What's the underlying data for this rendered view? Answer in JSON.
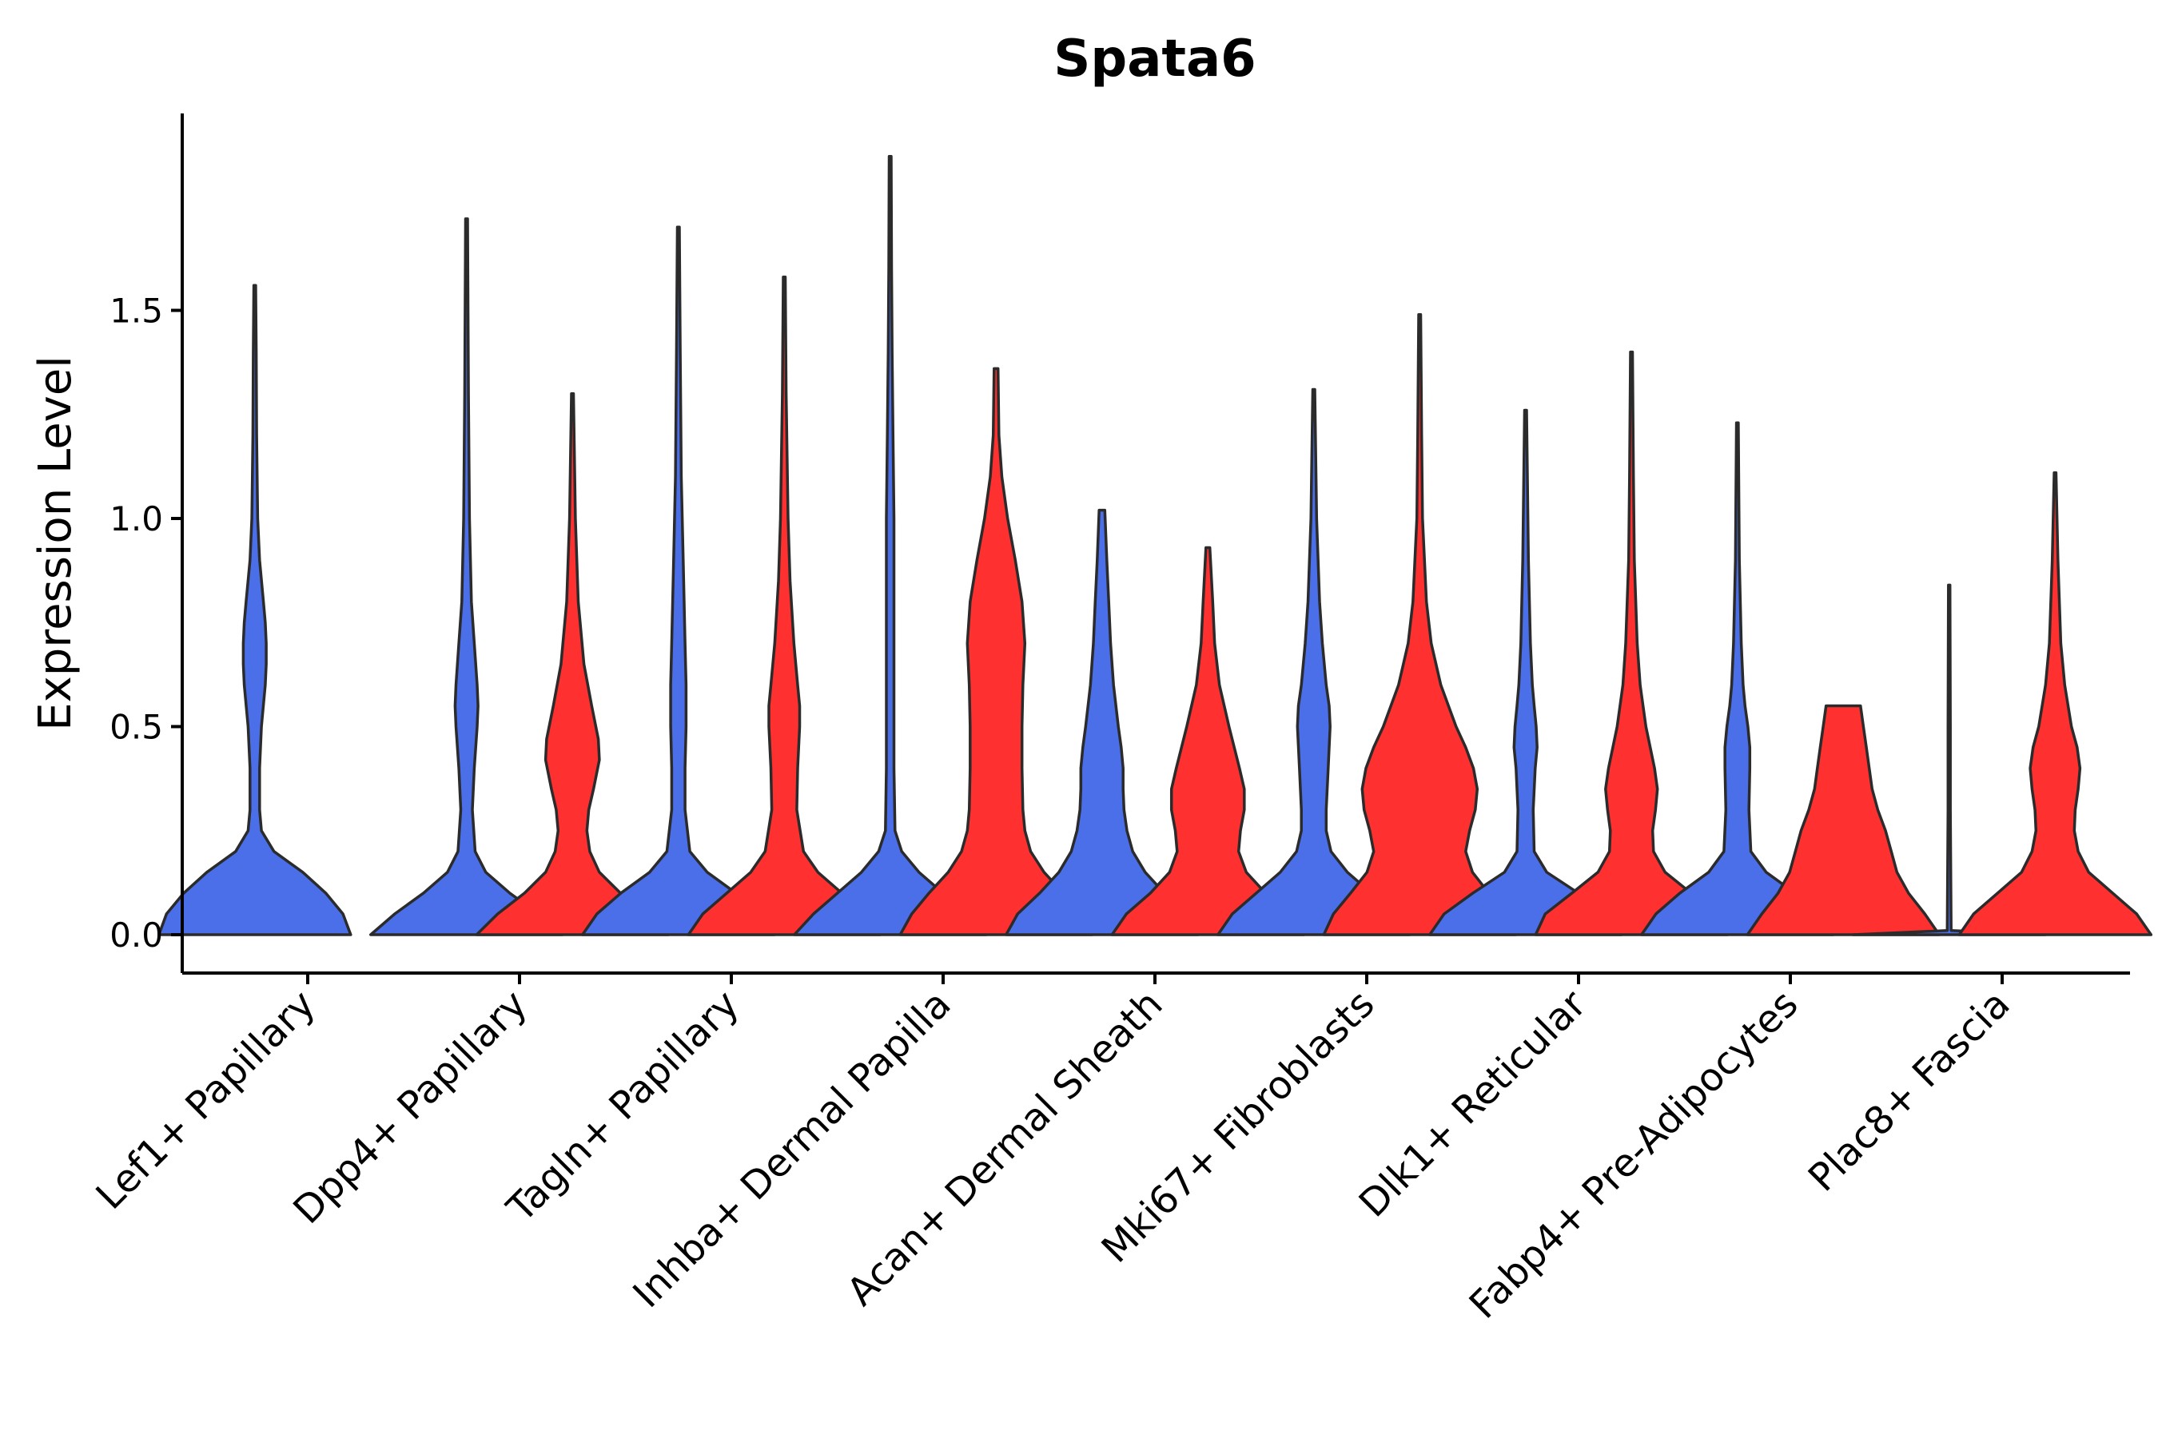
{
  "chart_data": {
    "type": "violin",
    "title": "Spata6",
    "xlabel": "",
    "ylabel": "Expression Level",
    "ylim": [
      -0.1,
      1.97
    ],
    "yticks": [
      0.0,
      0.5,
      1.0,
      1.5
    ],
    "ytick_labels": [
      "0.0",
      "0.5",
      "1.0",
      "1.5"
    ],
    "colors": {
      "blue": "#4A6FE8",
      "red": "#FF3030"
    },
    "categories": [
      "Lef1+ Papillary",
      "Dpp4+ Papillary",
      "Tagln+ Papillary",
      "Inhba+ Dermal Papilla",
      "Acan+ Dermal Sheath",
      "Mki67+ Fibroblasts",
      "Dlk1+ Reticular",
      "Fabp4+ Pre-Adipocytes",
      "Plac8+ Fascia"
    ],
    "violins": [
      {
        "category": "Lef1+ Papillary",
        "group": "blue",
        "max": 1.56,
        "profile": [
          [
            0,
            1.0
          ],
          [
            0.05,
            0.92
          ],
          [
            0.1,
            0.74
          ],
          [
            0.15,
            0.5
          ],
          [
            0.2,
            0.2
          ],
          [
            0.25,
            0.07
          ],
          [
            0.3,
            0.05
          ],
          [
            0.4,
            0.05
          ],
          [
            0.5,
            0.07
          ],
          [
            0.6,
            0.11
          ],
          [
            0.65,
            0.12
          ],
          [
            0.7,
            0.12
          ],
          [
            0.75,
            0.11
          ],
          [
            0.8,
            0.09
          ],
          [
            0.9,
            0.05
          ],
          [
            1.0,
            0.03
          ],
          [
            1.2,
            0.02
          ],
          [
            1.4,
            0.015
          ],
          [
            1.56,
            0.01
          ]
        ]
      },
      {
        "category": "Dpp4+ Papillary",
        "group": "blue",
        "max": 1.72,
        "profile": [
          [
            0,
            1.0
          ],
          [
            0.05,
            0.75
          ],
          [
            0.1,
            0.45
          ],
          [
            0.15,
            0.2
          ],
          [
            0.2,
            0.09
          ],
          [
            0.3,
            0.06
          ],
          [
            0.4,
            0.08
          ],
          [
            0.5,
            0.11
          ],
          [
            0.55,
            0.12
          ],
          [
            0.6,
            0.11
          ],
          [
            0.7,
            0.08
          ],
          [
            0.8,
            0.05
          ],
          [
            1.0,
            0.03
          ],
          [
            1.3,
            0.02
          ],
          [
            1.72,
            0.01
          ]
        ]
      },
      {
        "category": "Dpp4+ Papillary",
        "group": "red",
        "max": 1.3,
        "profile": [
          [
            0,
            1.0
          ],
          [
            0.05,
            0.78
          ],
          [
            0.1,
            0.5
          ],
          [
            0.15,
            0.28
          ],
          [
            0.2,
            0.18
          ],
          [
            0.25,
            0.15
          ],
          [
            0.3,
            0.17
          ],
          [
            0.35,
            0.22
          ],
          [
            0.42,
            0.28
          ],
          [
            0.47,
            0.27
          ],
          [
            0.55,
            0.2
          ],
          [
            0.65,
            0.12
          ],
          [
            0.8,
            0.06
          ],
          [
            1.0,
            0.03
          ],
          [
            1.3,
            0.01
          ]
        ]
      },
      {
        "category": "Tagln+ Papillary",
        "group": "blue",
        "max": 1.7,
        "profile": [
          [
            0,
            1.0
          ],
          [
            0.05,
            0.85
          ],
          [
            0.1,
            0.6
          ],
          [
            0.15,
            0.3
          ],
          [
            0.2,
            0.12
          ],
          [
            0.3,
            0.07
          ],
          [
            0.4,
            0.07
          ],
          [
            0.5,
            0.08
          ],
          [
            0.6,
            0.08
          ],
          [
            0.7,
            0.07
          ],
          [
            0.9,
            0.05
          ],
          [
            1.1,
            0.03
          ],
          [
            1.4,
            0.02
          ],
          [
            1.7,
            0.01
          ]
        ]
      },
      {
        "category": "Tagln+ Papillary",
        "group": "red",
        "max": 1.58,
        "profile": [
          [
            0,
            1.0
          ],
          [
            0.05,
            0.85
          ],
          [
            0.1,
            0.6
          ],
          [
            0.15,
            0.35
          ],
          [
            0.2,
            0.2
          ],
          [
            0.3,
            0.13
          ],
          [
            0.4,
            0.14
          ],
          [
            0.5,
            0.16
          ],
          [
            0.55,
            0.16
          ],
          [
            0.6,
            0.14
          ],
          [
            0.7,
            0.1
          ],
          [
            0.85,
            0.06
          ],
          [
            1.0,
            0.04
          ],
          [
            1.3,
            0.02
          ],
          [
            1.58,
            0.01
          ]
        ]
      },
      {
        "category": "Inhba+ Dermal Papilla",
        "group": "blue",
        "max": 1.87,
        "profile": [
          [
            0,
            1.0
          ],
          [
            0.05,
            0.8
          ],
          [
            0.1,
            0.55
          ],
          [
            0.15,
            0.3
          ],
          [
            0.2,
            0.12
          ],
          [
            0.25,
            0.05
          ],
          [
            0.4,
            0.04
          ],
          [
            0.6,
            0.04
          ],
          [
            0.8,
            0.04
          ],
          [
            1.0,
            0.04
          ],
          [
            1.2,
            0.03
          ],
          [
            1.4,
            0.02
          ],
          [
            1.6,
            0.015
          ],
          [
            1.87,
            0.01
          ]
        ]
      },
      {
        "category": "Inhba+ Dermal Papilla",
        "group": "red",
        "max": 1.36,
        "profile": [
          [
            0,
            1.0
          ],
          [
            0.05,
            0.88
          ],
          [
            0.1,
            0.7
          ],
          [
            0.15,
            0.5
          ],
          [
            0.2,
            0.36
          ],
          [
            0.25,
            0.3
          ],
          [
            0.3,
            0.28
          ],
          [
            0.4,
            0.27
          ],
          [
            0.5,
            0.27
          ],
          [
            0.6,
            0.28
          ],
          [
            0.7,
            0.3
          ],
          [
            0.8,
            0.27
          ],
          [
            0.9,
            0.2
          ],
          [
            1.0,
            0.12
          ],
          [
            1.1,
            0.06
          ],
          [
            1.2,
            0.03
          ],
          [
            1.36,
            0.02
          ]
        ]
      },
      {
        "category": "Acan+ Dermal Sheath",
        "group": "blue",
        "max": 1.02,
        "profile": [
          [
            0,
            1.0
          ],
          [
            0.05,
            0.88
          ],
          [
            0.1,
            0.65
          ],
          [
            0.15,
            0.45
          ],
          [
            0.2,
            0.32
          ],
          [
            0.25,
            0.26
          ],
          [
            0.3,
            0.23
          ],
          [
            0.35,
            0.22
          ],
          [
            0.4,
            0.22
          ],
          [
            0.45,
            0.2
          ],
          [
            0.5,
            0.17
          ],
          [
            0.6,
            0.12
          ],
          [
            0.7,
            0.09
          ],
          [
            0.8,
            0.07
          ],
          [
            0.9,
            0.05
          ],
          [
            1.02,
            0.03
          ]
        ]
      },
      {
        "category": "Acan+ Dermal Sheath",
        "group": "red",
        "max": 0.93,
        "profile": [
          [
            0,
            1.0
          ],
          [
            0.05,
            0.85
          ],
          [
            0.1,
            0.6
          ],
          [
            0.15,
            0.4
          ],
          [
            0.2,
            0.32
          ],
          [
            0.25,
            0.34
          ],
          [
            0.3,
            0.38
          ],
          [
            0.35,
            0.38
          ],
          [
            0.4,
            0.33
          ],
          [
            0.5,
            0.22
          ],
          [
            0.6,
            0.12
          ],
          [
            0.7,
            0.07
          ],
          [
            0.8,
            0.05
          ],
          [
            0.93,
            0.02
          ]
        ]
      },
      {
        "category": "Mki67+ Fibroblasts",
        "group": "blue",
        "max": 1.31,
        "profile": [
          [
            0,
            1.0
          ],
          [
            0.05,
            0.85
          ],
          [
            0.1,
            0.6
          ],
          [
            0.15,
            0.35
          ],
          [
            0.2,
            0.18
          ],
          [
            0.25,
            0.13
          ],
          [
            0.3,
            0.13
          ],
          [
            0.4,
            0.15
          ],
          [
            0.5,
            0.17
          ],
          [
            0.55,
            0.16
          ],
          [
            0.6,
            0.13
          ],
          [
            0.7,
            0.09
          ],
          [
            0.8,
            0.06
          ],
          [
            1.0,
            0.03
          ],
          [
            1.31,
            0.01
          ]
        ]
      },
      {
        "category": "Mki67+ Fibroblasts",
        "group": "red",
        "max": 1.49,
        "profile": [
          [
            0,
            1.0
          ],
          [
            0.05,
            0.9
          ],
          [
            0.1,
            0.72
          ],
          [
            0.15,
            0.55
          ],
          [
            0.2,
            0.48
          ],
          [
            0.25,
            0.52
          ],
          [
            0.3,
            0.58
          ],
          [
            0.35,
            0.6
          ],
          [
            0.4,
            0.56
          ],
          [
            0.45,
            0.48
          ],
          [
            0.5,
            0.38
          ],
          [
            0.6,
            0.22
          ],
          [
            0.7,
            0.12
          ],
          [
            0.8,
            0.07
          ],
          [
            1.0,
            0.03
          ],
          [
            1.2,
            0.02
          ],
          [
            1.49,
            0.01
          ]
        ]
      },
      {
        "category": "Dlk1+ Reticular",
        "group": "blue",
        "max": 1.26,
        "profile": [
          [
            0,
            1.0
          ],
          [
            0.05,
            0.85
          ],
          [
            0.1,
            0.55
          ],
          [
            0.15,
            0.22
          ],
          [
            0.2,
            0.09
          ],
          [
            0.3,
            0.08
          ],
          [
            0.4,
            0.1
          ],
          [
            0.45,
            0.12
          ],
          [
            0.5,
            0.11
          ],
          [
            0.55,
            0.09
          ],
          [
            0.6,
            0.07
          ],
          [
            0.7,
            0.05
          ],
          [
            0.9,
            0.03
          ],
          [
            1.26,
            0.01
          ]
        ]
      },
      {
        "category": "Dlk1+ Reticular",
        "group": "red",
        "max": 1.4,
        "profile": [
          [
            0,
            1.0
          ],
          [
            0.05,
            0.9
          ],
          [
            0.1,
            0.62
          ],
          [
            0.15,
            0.35
          ],
          [
            0.2,
            0.23
          ],
          [
            0.25,
            0.22
          ],
          [
            0.3,
            0.25
          ],
          [
            0.35,
            0.27
          ],
          [
            0.4,
            0.24
          ],
          [
            0.5,
            0.15
          ],
          [
            0.6,
            0.09
          ],
          [
            0.7,
            0.06
          ],
          [
            0.9,
            0.03
          ],
          [
            1.1,
            0.02
          ],
          [
            1.4,
            0.01
          ]
        ]
      },
      {
        "category": "Fabp4+ Pre-Adipocytes",
        "group": "blue",
        "max": 1.23,
        "profile": [
          [
            0,
            1.0
          ],
          [
            0.05,
            0.85
          ],
          [
            0.1,
            0.6
          ],
          [
            0.15,
            0.3
          ],
          [
            0.2,
            0.14
          ],
          [
            0.3,
            0.12
          ],
          [
            0.4,
            0.13
          ],
          [
            0.45,
            0.13
          ],
          [
            0.5,
            0.11
          ],
          [
            0.55,
            0.08
          ],
          [
            0.6,
            0.06
          ],
          [
            0.7,
            0.04
          ],
          [
            0.9,
            0.02
          ],
          [
            1.23,
            0.01
          ]
        ]
      },
      {
        "category": "Fabp4+ Pre-Adipocytes",
        "group": "red",
        "max": 0.55,
        "profile": [
          [
            0,
            1.0
          ],
          [
            0.05,
            0.85
          ],
          [
            0.1,
            0.68
          ],
          [
            0.15,
            0.56
          ],
          [
            0.2,
            0.5
          ],
          [
            0.25,
            0.44
          ],
          [
            0.3,
            0.36
          ],
          [
            0.35,
            0.3
          ],
          [
            0.4,
            0.27
          ],
          [
            0.45,
            0.24
          ],
          [
            0.5,
            0.21
          ],
          [
            0.55,
            0.18
          ]
        ]
      },
      {
        "category": "Plac8+ Fascia",
        "group": "blue",
        "max": 0.84,
        "profile": [
          [
            0,
            1.0
          ],
          [
            0.01,
            0.02
          ],
          [
            0.3,
            0.012
          ],
          [
            0.5,
            0.012
          ],
          [
            0.84,
            0.008
          ]
        ]
      },
      {
        "category": "Plac8+ Fascia",
        "group": "red",
        "max": 1.11,
        "profile": [
          [
            0,
            1.0
          ],
          [
            0.05,
            0.85
          ],
          [
            0.1,
            0.6
          ],
          [
            0.15,
            0.35
          ],
          [
            0.2,
            0.24
          ],
          [
            0.25,
            0.2
          ],
          [
            0.3,
            0.21
          ],
          [
            0.35,
            0.24
          ],
          [
            0.4,
            0.26
          ],
          [
            0.45,
            0.23
          ],
          [
            0.5,
            0.17
          ],
          [
            0.6,
            0.1
          ],
          [
            0.7,
            0.06
          ],
          [
            0.9,
            0.03
          ],
          [
            1.11,
            0.01
          ]
        ]
      }
    ]
  }
}
